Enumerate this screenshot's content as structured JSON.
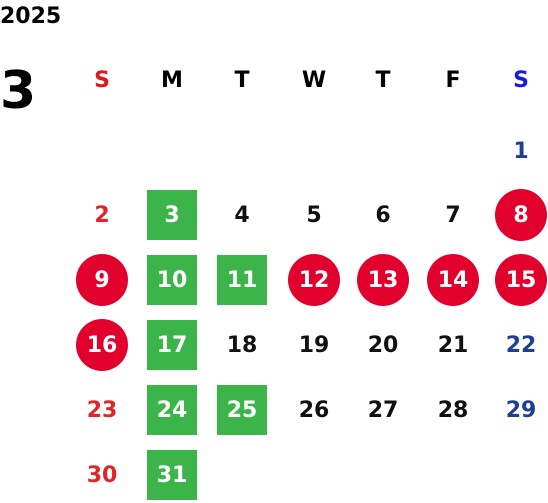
{
  "calendar": {
    "year": "2025",
    "month": "3",
    "weekdays": [
      {
        "label": "S",
        "color": "#e0161c"
      },
      {
        "label": "M",
        "color": "#000000"
      },
      {
        "label": "T",
        "color": "#000000"
      },
      {
        "label": "W",
        "color": "#000000"
      },
      {
        "label": "T",
        "color": "#000000"
      },
      {
        "label": "F",
        "color": "#000000"
      },
      {
        "label": "S",
        "color": "#1a1adc"
      }
    ],
    "colors": {
      "sunday": "#e0262a",
      "saturday": "#1c3f94",
      "weekday": "#111111",
      "holiday_circle": "#e2002d",
      "green_square": "#3bb54a",
      "highlight_text": "#ffffff"
    },
    "days": [
      {
        "label": "1",
        "week": 0,
        "dow": 6,
        "style": "plain"
      },
      {
        "label": "2",
        "week": 1,
        "dow": 0,
        "style": "plain"
      },
      {
        "label": "3",
        "week": 1,
        "dow": 1,
        "style": "square"
      },
      {
        "label": "4",
        "week": 1,
        "dow": 2,
        "style": "plain"
      },
      {
        "label": "5",
        "week": 1,
        "dow": 3,
        "style": "plain"
      },
      {
        "label": "6",
        "week": 1,
        "dow": 4,
        "style": "plain"
      },
      {
        "label": "7",
        "week": 1,
        "dow": 5,
        "style": "plain"
      },
      {
        "label": "8",
        "week": 1,
        "dow": 6,
        "style": "circle"
      },
      {
        "label": "9",
        "week": 2,
        "dow": 0,
        "style": "circle"
      },
      {
        "label": "10",
        "week": 2,
        "dow": 1,
        "style": "square"
      },
      {
        "label": "11",
        "week": 2,
        "dow": 2,
        "style": "square"
      },
      {
        "label": "12",
        "week": 2,
        "dow": 3,
        "style": "circle"
      },
      {
        "label": "13",
        "week": 2,
        "dow": 4,
        "style": "circle"
      },
      {
        "label": "14",
        "week": 2,
        "dow": 5,
        "style": "circle"
      },
      {
        "label": "15",
        "week": 2,
        "dow": 6,
        "style": "circle"
      },
      {
        "label": "16",
        "week": 3,
        "dow": 0,
        "style": "circle"
      },
      {
        "label": "17",
        "week": 3,
        "dow": 1,
        "style": "square"
      },
      {
        "label": "18",
        "week": 3,
        "dow": 2,
        "style": "plain"
      },
      {
        "label": "19",
        "week": 3,
        "dow": 3,
        "style": "plain"
      },
      {
        "label": "20",
        "week": 3,
        "dow": 4,
        "style": "plain"
      },
      {
        "label": "21",
        "week": 3,
        "dow": 5,
        "style": "plain"
      },
      {
        "label": "22",
        "week": 3,
        "dow": 6,
        "style": "plain"
      },
      {
        "label": "23",
        "week": 4,
        "dow": 0,
        "style": "plain"
      },
      {
        "label": "24",
        "week": 4,
        "dow": 1,
        "style": "square"
      },
      {
        "label": "25",
        "week": 4,
        "dow": 2,
        "style": "square"
      },
      {
        "label": "26",
        "week": 4,
        "dow": 3,
        "style": "plain"
      },
      {
        "label": "27",
        "week": 4,
        "dow": 4,
        "style": "plain"
      },
      {
        "label": "28",
        "week": 4,
        "dow": 5,
        "style": "plain"
      },
      {
        "label": "29",
        "week": 4,
        "dow": 6,
        "style": "plain"
      },
      {
        "label": "30",
        "week": 5,
        "dow": 0,
        "style": "plain"
      },
      {
        "label": "31",
        "week": 5,
        "dow": 1,
        "style": "square"
      }
    ]
  }
}
